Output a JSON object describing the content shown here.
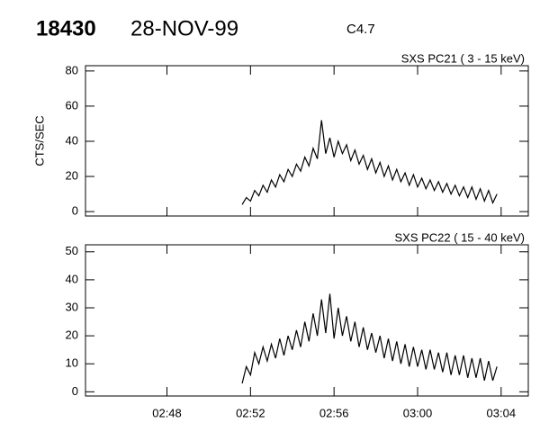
{
  "header": {
    "id": "18430",
    "date": "28-NOV-99",
    "class": "C4.7"
  },
  "chart_data": [
    {
      "type": "line",
      "title": "SXS PC21  (  3 - 15 keV)",
      "ylabel": "CTS/SEC",
      "color": "#000000",
      "xlim": [
        44.1,
        65.3
      ],
      "xticks": [
        48,
        52,
        56,
        60,
        64
      ],
      "xticklabels": false,
      "ylim": [
        -2.5,
        83
      ],
      "yticks": [
        0,
        20,
        40,
        60,
        80
      ],
      "x": [
        51.6,
        51.8,
        52.0,
        52.2,
        52.4,
        52.6,
        52.8,
        53.0,
        53.2,
        53.4,
        53.6,
        53.8,
        54.0,
        54.2,
        54.4,
        54.6,
        54.8,
        55.0,
        55.2,
        55.4,
        55.6,
        55.8,
        56.0,
        56.2,
        56.4,
        56.6,
        56.8,
        57.0,
        57.2,
        57.4,
        57.6,
        57.8,
        58.0,
        58.2,
        58.4,
        58.6,
        58.8,
        59.0,
        59.2,
        59.4,
        59.6,
        59.8,
        60.0,
        60.2,
        60.4,
        60.6,
        60.8,
        61.0,
        61.2,
        61.4,
        61.6,
        61.8,
        62.0,
        62.2,
        62.4,
        62.6,
        62.8,
        63.0,
        63.2,
        63.4,
        63.6,
        63.8
      ],
      "values": [
        4,
        8,
        6,
        12,
        9,
        15,
        11,
        18,
        14,
        21,
        17,
        24,
        20,
        27,
        23,
        31,
        26,
        36,
        30,
        52,
        33,
        42,
        31,
        40,
        33,
        38,
        29,
        35,
        27,
        32,
        24,
        30,
        22,
        28,
        20,
        26,
        18,
        24,
        17,
        22,
        15,
        21,
        14,
        19,
        13,
        18,
        12,
        17,
        11,
        16,
        10,
        15,
        9,
        14,
        8,
        14,
        7,
        13,
        6,
        12,
        5,
        10
      ]
    },
    {
      "type": "line",
      "title": "SXS PC22  ( 15 - 40 keV)",
      "color": "#000000",
      "xlim": [
        44.1,
        65.3
      ],
      "xticks": [
        {
          "value": 48,
          "label": "02:48"
        },
        {
          "value": 52,
          "label": "02:52"
        },
        {
          "value": 56,
          "label": "02:56"
        },
        {
          "value": 60,
          "label": "03:00"
        },
        {
          "value": 64,
          "label": "03:04"
        }
      ],
      "xticklabels": true,
      "ylim": [
        -1.5,
        52.5
      ],
      "yticks": [
        0,
        10,
        20,
        30,
        40,
        50
      ],
      "x": [
        51.6,
        51.8,
        52.0,
        52.2,
        52.4,
        52.6,
        52.8,
        53.0,
        53.2,
        53.4,
        53.6,
        53.8,
        54.0,
        54.2,
        54.4,
        54.6,
        54.8,
        55.0,
        55.2,
        55.4,
        55.6,
        55.8,
        56.0,
        56.2,
        56.4,
        56.6,
        56.8,
        57.0,
        57.2,
        57.4,
        57.6,
        57.8,
        58.0,
        58.2,
        58.4,
        58.6,
        58.8,
        59.0,
        59.2,
        59.4,
        59.6,
        59.8,
        60.0,
        60.2,
        60.4,
        60.6,
        60.8,
        61.0,
        61.2,
        61.4,
        61.6,
        61.8,
        62.0,
        62.2,
        62.4,
        62.6,
        62.8,
        63.0,
        63.2,
        63.4,
        63.6,
        63.8
      ],
      "values": [
        3,
        9,
        6,
        14,
        10,
        16,
        11,
        17,
        12,
        19,
        13,
        20,
        15,
        22,
        16,
        25,
        18,
        28,
        20,
        33,
        21,
        35,
        19,
        30,
        20,
        27,
        18,
        25,
        16,
        23,
        15,
        21,
        14,
        20,
        12,
        19,
        11,
        18,
        10,
        17,
        9,
        16,
        9,
        15,
        8,
        15,
        8,
        14,
        7,
        14,
        6,
        13,
        6,
        13,
        5,
        12,
        5,
        12,
        4,
        11,
        4,
        9
      ]
    }
  ]
}
